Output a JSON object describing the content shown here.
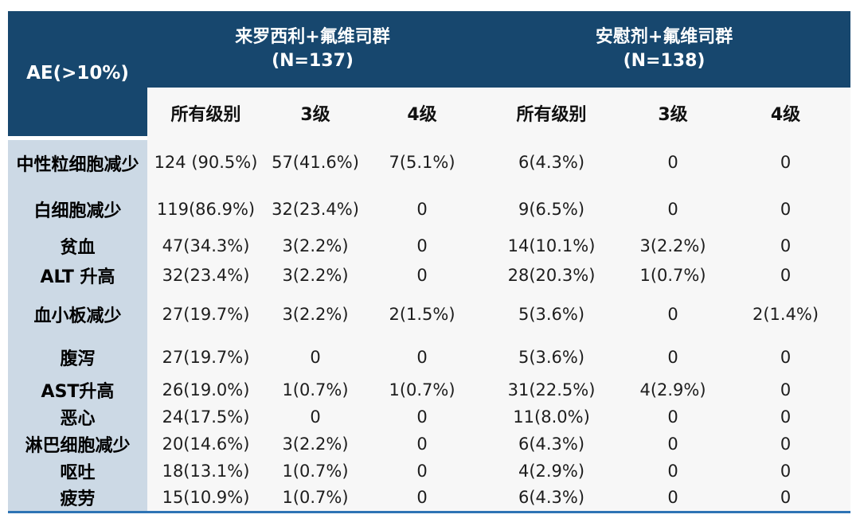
{
  "table": {
    "corner_header": "AE(>10%)",
    "groups": [
      {
        "title": "来罗西利+氟维司群",
        "n": "(N=137)"
      },
      {
        "title": "安慰剂+氟维司群",
        "n": "(N=138)"
      }
    ],
    "sub_headers": [
      "所有级别",
      "3级",
      "4级",
      "所有级别",
      "3级",
      "4级"
    ],
    "rows": [
      {
        "label": "中性粒细胞减少",
        "values": [
          "124 (90.5%)",
          "57(41.6%)",
          "7(5.1%)",
          "6(4.3%)",
          "0",
          "0"
        ]
      },
      {
        "label": "白细胞减少",
        "values": [
          "119(86.9%)",
          "32(23.4%)",
          "0",
          "9(6.5%)",
          "0",
          "0"
        ]
      },
      {
        "label": "贫血",
        "values": [
          "47(34.3%)",
          "3(2.2%)",
          "0",
          "14(10.1%)",
          "3(2.2%)",
          "0"
        ]
      },
      {
        "label": "ALT 升高",
        "values": [
          "32(23.4%)",
          "3(2.2%)",
          "0",
          "28(20.3%)",
          "1(0.7%)",
          "0"
        ]
      },
      {
        "label": "血小板减少",
        "values": [
          "27(19.7%)",
          "3(2.2%)",
          "2(1.5%)",
          "5(3.6%)",
          "0",
          "2(1.4%)"
        ]
      },
      {
        "label": "腹泻",
        "values": [
          "27(19.7%)",
          "0",
          "0",
          "5(3.6%)",
          "0",
          "0"
        ]
      },
      {
        "label": "AST升高",
        "values": [
          "26(19.0%)",
          "1(0.7%)",
          "1(0.7%)",
          "31(22.5%)",
          "4(2.9%)",
          "0"
        ]
      },
      {
        "label": "恶心",
        "values": [
          "24(17.5%)",
          "0",
          "0",
          "11(8.0%)",
          "0",
          "0"
        ]
      },
      {
        "label": "淋巴细胞减少",
        "values": [
          "20(14.6%)",
          "3(2.2%)",
          "0",
          "6(4.3%)",
          "0",
          "0"
        ]
      },
      {
        "label": "呕吐",
        "values": [
          "18(13.1%)",
          "1(0.7%)",
          "0",
          "4(2.9%)",
          "0",
          "0"
        ]
      },
      {
        "label": "疲劳",
        "values": [
          "15(10.9%)",
          "1(0.7%)",
          "0",
          "6(4.3%)",
          "0",
          "0"
        ]
      }
    ],
    "colors": {
      "header_bg": "#17476e",
      "header_text": "#ffffff",
      "row_label_bg": "#ccd9e5",
      "body_bg": "#f7f7f7",
      "bottom_rule": "#2e74b5",
      "body_text": "#1d1d1d"
    }
  }
}
